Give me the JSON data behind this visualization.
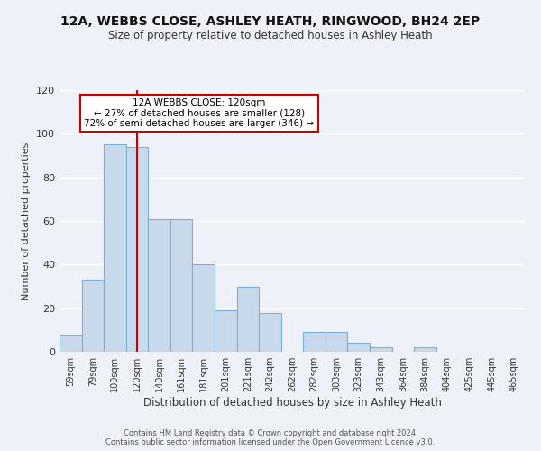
{
  "title": "12A, WEBBS CLOSE, ASHLEY HEATH, RINGWOOD, BH24 2EP",
  "subtitle": "Size of property relative to detached houses in Ashley Heath",
  "xlabel": "Distribution of detached houses by size in Ashley Heath",
  "ylabel": "Number of detached properties",
  "bin_labels": [
    "59sqm",
    "79sqm",
    "100sqm",
    "120sqm",
    "140sqm",
    "161sqm",
    "181sqm",
    "201sqm",
    "221sqm",
    "242sqm",
    "262sqm",
    "282sqm",
    "303sqm",
    "323sqm",
    "343sqm",
    "364sqm",
    "384sqm",
    "404sqm",
    "425sqm",
    "445sqm",
    "465sqm"
  ],
  "bar_values": [
    8,
    33,
    95,
    94,
    61,
    61,
    40,
    19,
    30,
    18,
    0,
    9,
    9,
    4,
    2,
    0,
    2,
    0,
    0,
    0,
    0
  ],
  "bar_color": "#c9d9ec",
  "bar_edge_color": "#7bafd4",
  "vline_x_index": 3,
  "vline_color": "#cc0000",
  "ylim": [
    0,
    120
  ],
  "yticks": [
    0,
    20,
    40,
    60,
    80,
    100,
    120
  ],
  "annotation_title": "12A WEBBS CLOSE: 120sqm",
  "annotation_line1": "← 27% of detached houses are smaller (128)",
  "annotation_line2": "72% of semi-detached houses are larger (346) →",
  "annotation_box_color": "#ffffff",
  "annotation_box_edge_color": "#cc0000",
  "footer1": "Contains HM Land Registry data © Crown copyright and database right 2024.",
  "footer2": "Contains public sector information licensed under the Open Government Licence v3.0.",
  "bg_color": "#eef2f8",
  "plot_bg_color": "#eef2f8"
}
